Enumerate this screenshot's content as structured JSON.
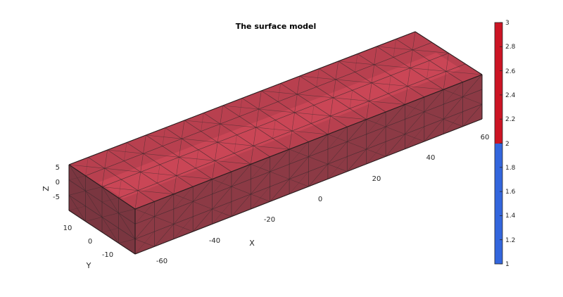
{
  "figure": {
    "title": "The surface model",
    "x_axis": {
      "label": "X",
      "ticks": [
        "-60",
        "-40",
        "-20",
        "0",
        "20",
        "40",
        "60"
      ]
    },
    "y_axis": {
      "label": "Y",
      "ticks": [
        "10",
        "0",
        "-10"
      ]
    },
    "z_axis": {
      "label": "Z",
      "ticks": [
        "5",
        "0",
        "-5"
      ]
    },
    "colors": {
      "face_top": "#b8404f",
      "face_top_highlight": "#d94a5c",
      "face_front": "#8c3a45",
      "face_side": "#7a3640",
      "mesh_edge": "#3d2a2d",
      "colorbar_high": "#cc1424",
      "colorbar_low": "#3366dd"
    },
    "colorbar": {
      "ticks": [
        "3",
        "2.8",
        "2.6",
        "2.4",
        "2.2",
        "2",
        "1.8",
        "1.6",
        "1.4",
        "1.2",
        "1"
      ],
      "range": [
        1,
        3
      ],
      "split": 2
    },
    "model": {
      "x_range": [
        -70,
        70
      ],
      "y_range": [
        -15,
        15
      ],
      "z_range": [
        -7.5,
        7.5
      ],
      "mesh": "tetrahedral"
    }
  }
}
